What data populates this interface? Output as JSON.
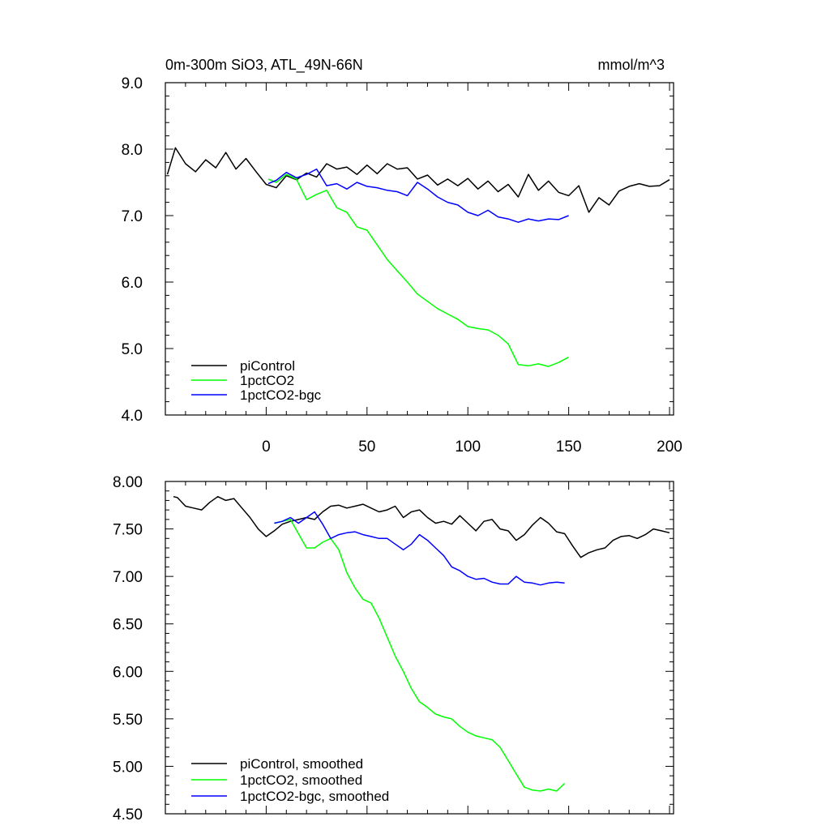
{
  "chart_data": [
    {
      "type": "line",
      "title": "0m-300m SiO3, ATL_49N-66N",
      "units": "mmol/m^3",
      "xlim": [
        -50,
        202
      ],
      "ylim": [
        4.0,
        9.0
      ],
      "x_ticks": [
        0,
        50,
        100,
        150,
        200
      ],
      "x_tick_labels": [
        "0",
        "50",
        "100",
        "150",
        "200"
      ],
      "y_ticks": [
        4.0,
        5.0,
        6.0,
        7.0,
        8.0,
        9.0
      ],
      "y_tick_labels": [
        "4.0",
        "5.0",
        "6.0",
        "7.0",
        "8.0",
        "9.0"
      ],
      "legend_position": "bottom-left",
      "series": [
        {
          "name": "piControl",
          "color": "#000000",
          "x": [
            -49,
            -45,
            -40,
            -35,
            -30,
            -25,
            -20,
            -15,
            -10,
            -5,
            0,
            5,
            10,
            15,
            20,
            25,
            30,
            35,
            40,
            45,
            50,
            55,
            60,
            65,
            70,
            75,
            80,
            85,
            90,
            95,
            100,
            105,
            110,
            115,
            120,
            125,
            130,
            135,
            140,
            145,
            150,
            155,
            160,
            165,
            170,
            175,
            180,
            185,
            190,
            195,
            200
          ],
          "values": [
            7.62,
            8.02,
            7.78,
            7.66,
            7.84,
            7.72,
            7.95,
            7.7,
            7.86,
            7.66,
            7.47,
            7.42,
            7.6,
            7.54,
            7.64,
            7.58,
            7.78,
            7.7,
            7.73,
            7.62,
            7.76,
            7.63,
            7.78,
            7.7,
            7.72,
            7.55,
            7.61,
            7.46,
            7.55,
            7.45,
            7.56,
            7.4,
            7.52,
            7.36,
            7.47,
            7.28,
            7.62,
            7.38,
            7.52,
            7.35,
            7.3,
            7.45,
            7.05,
            7.27,
            7.16,
            7.37,
            7.44,
            7.48,
            7.44,
            7.45,
            7.54
          ]
        },
        {
          "name": "1pctCO2",
          "color": "#00ff00",
          "x": [
            1,
            5,
            10,
            15,
            20,
            25,
            30,
            35,
            40,
            45,
            50,
            55,
            60,
            65,
            70,
            75,
            80,
            85,
            90,
            95,
            100,
            105,
            110,
            115,
            120,
            125,
            130,
            135,
            140,
            145,
            150
          ],
          "values": [
            7.55,
            7.5,
            7.62,
            7.55,
            7.24,
            7.32,
            7.38,
            7.12,
            7.05,
            6.83,
            6.78,
            6.56,
            6.34,
            6.17,
            6.0,
            5.82,
            5.71,
            5.6,
            5.52,
            5.44,
            5.33,
            5.3,
            5.28,
            5.2,
            5.07,
            4.76,
            4.74,
            4.77,
            4.73,
            4.79,
            4.87
          ]
        },
        {
          "name": "1pctCO2-bgc",
          "color": "#0000ff",
          "x": [
            1,
            5,
            10,
            15,
            20,
            25,
            30,
            35,
            40,
            45,
            50,
            55,
            60,
            65,
            70,
            75,
            80,
            85,
            90,
            95,
            100,
            105,
            110,
            115,
            120,
            125,
            130,
            135,
            140,
            145,
            150
          ],
          "values": [
            7.48,
            7.53,
            7.65,
            7.57,
            7.62,
            7.7,
            7.45,
            7.48,
            7.4,
            7.5,
            7.44,
            7.42,
            7.38,
            7.36,
            7.3,
            7.5,
            7.4,
            7.28,
            7.2,
            7.16,
            7.05,
            7.0,
            7.08,
            6.98,
            6.95,
            6.9,
            6.95,
            6.92,
            6.95,
            6.94,
            7.0
          ]
        }
      ]
    },
    {
      "type": "line",
      "xlim": [
        -50,
        202
      ],
      "ylim": [
        4.5,
        8.0
      ],
      "y_ticks": [
        4.5,
        5.0,
        5.5,
        6.0,
        6.5,
        7.0,
        7.5,
        8.0
      ],
      "y_tick_labels": [
        "4.50",
        "5.00",
        "5.50",
        "6.00",
        "6.50",
        "7.00",
        "7.50",
        "8.00"
      ],
      "legend_position": "bottom-left",
      "series": [
        {
          "name": "piControl, smoothed",
          "color": "#000000",
          "x": [
            -46,
            -44,
            -40,
            -36,
            -32,
            -28,
            -24,
            -20,
            -16,
            -12,
            -8,
            -4,
            0,
            4,
            8,
            12,
            16,
            20,
            24,
            28,
            32,
            36,
            40,
            44,
            48,
            52,
            56,
            60,
            64,
            68,
            72,
            76,
            80,
            84,
            88,
            92,
            96,
            100,
            104,
            108,
            112,
            116,
            120,
            124,
            128,
            132,
            136,
            140,
            144,
            148,
            152,
            156,
            160,
            164,
            168,
            172,
            176,
            180,
            184,
            188,
            192,
            196,
            200
          ],
          "values": [
            7.84,
            7.83,
            7.74,
            7.72,
            7.7,
            7.78,
            7.84,
            7.8,
            7.82,
            7.72,
            7.62,
            7.5,
            7.42,
            7.48,
            7.55,
            7.58,
            7.6,
            7.62,
            7.6,
            7.68,
            7.74,
            7.75,
            7.72,
            7.74,
            7.76,
            7.72,
            7.68,
            7.7,
            7.74,
            7.62,
            7.68,
            7.7,
            7.62,
            7.56,
            7.58,
            7.55,
            7.64,
            7.56,
            7.48,
            7.58,
            7.6,
            7.5,
            7.48,
            7.38,
            7.44,
            7.54,
            7.62,
            7.56,
            7.47,
            7.45,
            7.32,
            7.2,
            7.25,
            7.28,
            7.3,
            7.38,
            7.42,
            7.43,
            7.4,
            7.44,
            7.5,
            7.48,
            7.46
          ]
        },
        {
          "name": "1pctCO2, smoothed",
          "color": "#00ff00",
          "x": [
            4,
            8,
            12,
            16,
            20,
            24,
            28,
            32,
            36,
            40,
            44,
            48,
            52,
            56,
            60,
            64,
            68,
            72,
            76,
            80,
            84,
            88,
            92,
            96,
            100,
            104,
            108,
            112,
            116,
            120,
            124,
            128,
            132,
            136,
            140,
            144,
            148
          ],
          "values": [
            7.56,
            7.58,
            7.6,
            7.45,
            7.3,
            7.3,
            7.36,
            7.4,
            7.28,
            7.04,
            6.88,
            6.76,
            6.72,
            6.56,
            6.36,
            6.16,
            6.0,
            5.82,
            5.68,
            5.62,
            5.55,
            5.52,
            5.5,
            5.42,
            5.36,
            5.32,
            5.3,
            5.28,
            5.2,
            5.06,
            4.92,
            4.78,
            4.75,
            4.74,
            4.76,
            4.74,
            4.82
          ]
        },
        {
          "name": "1pctCO2-bgc, smoothed",
          "color": "#0000ff",
          "x": [
            4,
            8,
            12,
            16,
            20,
            24,
            28,
            32,
            36,
            40,
            44,
            48,
            52,
            56,
            60,
            64,
            68,
            72,
            76,
            80,
            84,
            88,
            92,
            96,
            100,
            104,
            108,
            112,
            116,
            120,
            124,
            128,
            132,
            136,
            140,
            144,
            148
          ],
          "values": [
            7.56,
            7.58,
            7.62,
            7.56,
            7.62,
            7.68,
            7.55,
            7.4,
            7.44,
            7.46,
            7.47,
            7.44,
            7.42,
            7.4,
            7.4,
            7.34,
            7.28,
            7.34,
            7.44,
            7.38,
            7.3,
            7.22,
            7.1,
            7.06,
            7.0,
            6.97,
            6.98,
            6.94,
            6.92,
            6.92,
            7.0,
            6.94,
            6.93,
            6.91,
            6.93,
            6.94,
            6.93
          ]
        }
      ]
    }
  ]
}
